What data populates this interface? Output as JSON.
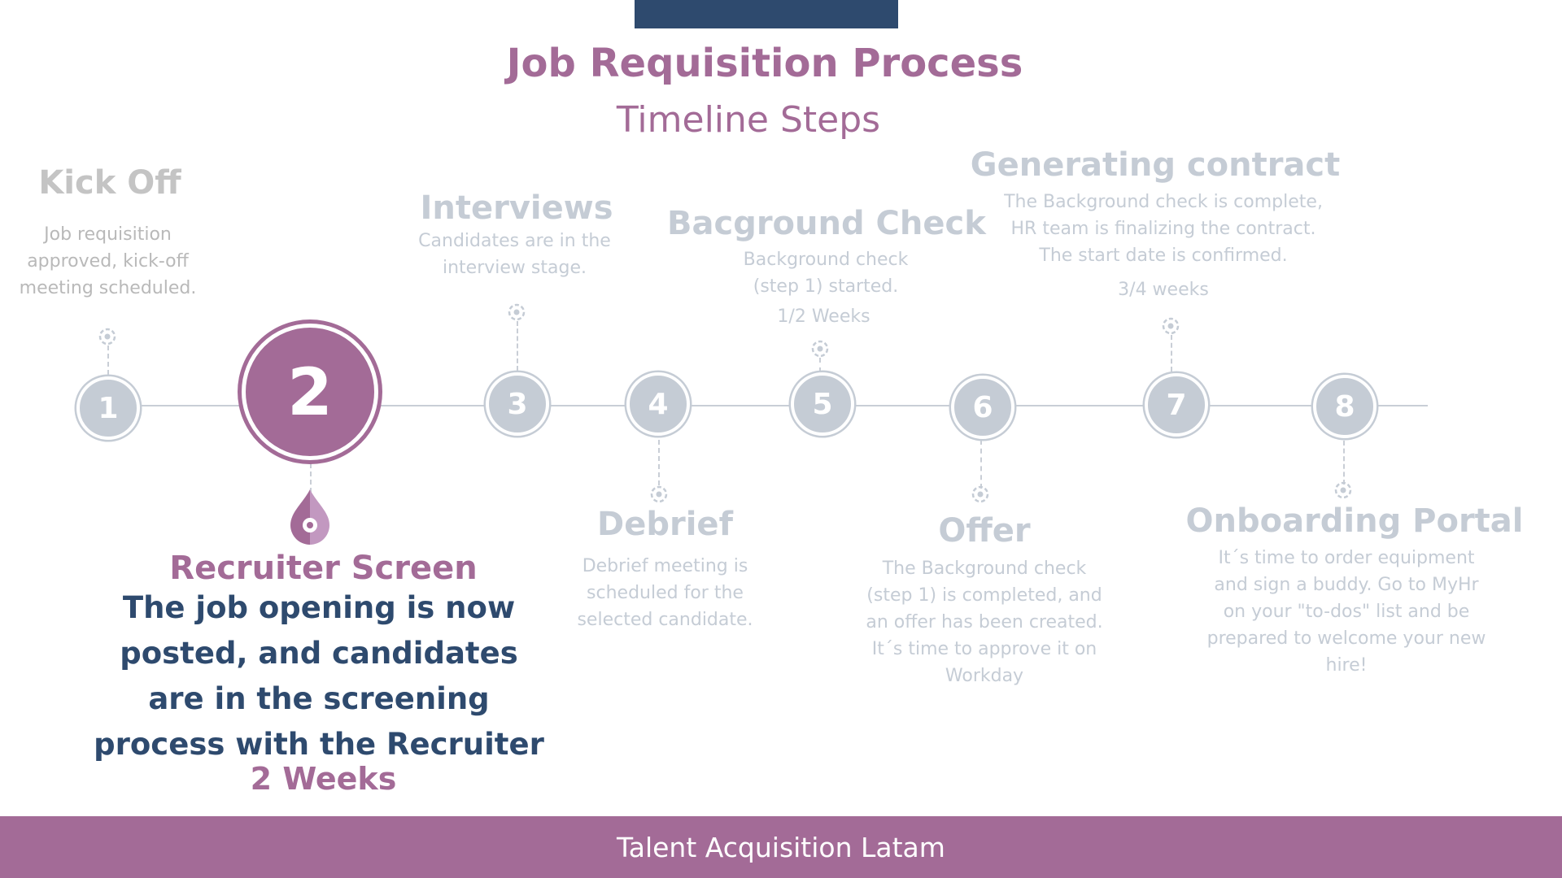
{
  "header": {
    "title": "Job Requisition Process",
    "subtitle": "Timeline Steps"
  },
  "footer": {
    "text": "Talent Acquisition Latam"
  },
  "colors": {
    "accent": "#a36b97",
    "navy": "#2e4a6e",
    "inactive": "#c5ccd5"
  },
  "steps": [
    {
      "number": "1",
      "title": "Kick Off",
      "description": "Job requisition approved, kick-off meeting scheduled.",
      "duration": ""
    },
    {
      "number": "2",
      "title": "Recruiter Screen",
      "description": "The job opening is now posted, and candidates are in the screening process with the Recruiter",
      "duration": "2 Weeks",
      "active": true
    },
    {
      "number": "3",
      "title": "Interviews",
      "description": "Candidates are in the interview stage.",
      "duration": ""
    },
    {
      "number": "4",
      "title": "Debrief",
      "description": "Debrief meeting is scheduled for the selected candidate.",
      "duration": ""
    },
    {
      "number": "5",
      "title": "Bacground Check",
      "description": "Background check (step 1) started.",
      "duration": "1/2 Weeks"
    },
    {
      "number": "6",
      "title": "Offer",
      "description": "The Background check (step 1) is completed, and an offer has been created. It´s time to approve it on Workday",
      "duration": ""
    },
    {
      "number": "7",
      "title": "Generating contract",
      "description": "The Background check is complete, HR team is finalizing the contract. The start date is confirmed.",
      "duration": "3/4 weeks"
    },
    {
      "number": "8",
      "title": "Onboarding Portal",
      "description": "It´s time to order equipment and sign a buddy. Go to MyHr on your \"to-dos\" list and be prepared to welcome your new hire!",
      "duration": ""
    }
  ]
}
